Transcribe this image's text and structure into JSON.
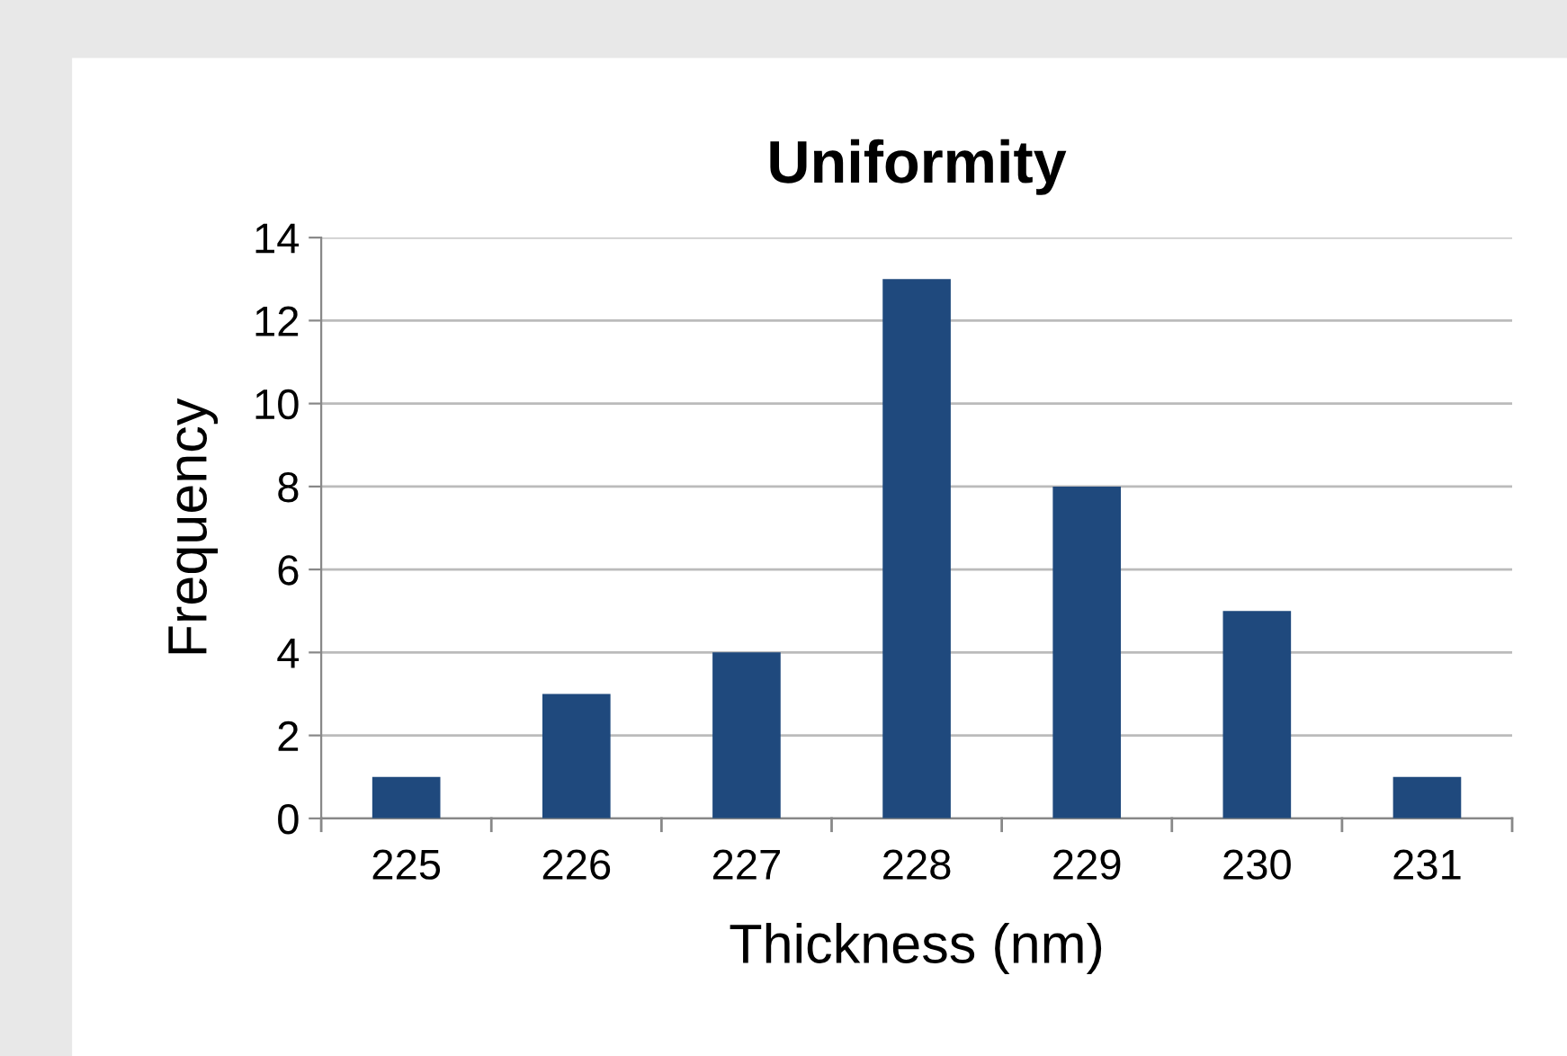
{
  "chart_data": {
    "type": "bar",
    "title": "Uniformity",
    "xlabel": "Thickness (nm)",
    "ylabel": "Frequency",
    "categories": [
      "225",
      "226",
      "227",
      "228",
      "229",
      "230",
      "231"
    ],
    "values": [
      1,
      3,
      4,
      13,
      8,
      5,
      1
    ],
    "color": "#1f497d",
    "ylim": [
      0,
      14
    ],
    "yticks": [
      0,
      2,
      4,
      6,
      8,
      10,
      12,
      14
    ],
    "grid": "y",
    "legend": false
  }
}
